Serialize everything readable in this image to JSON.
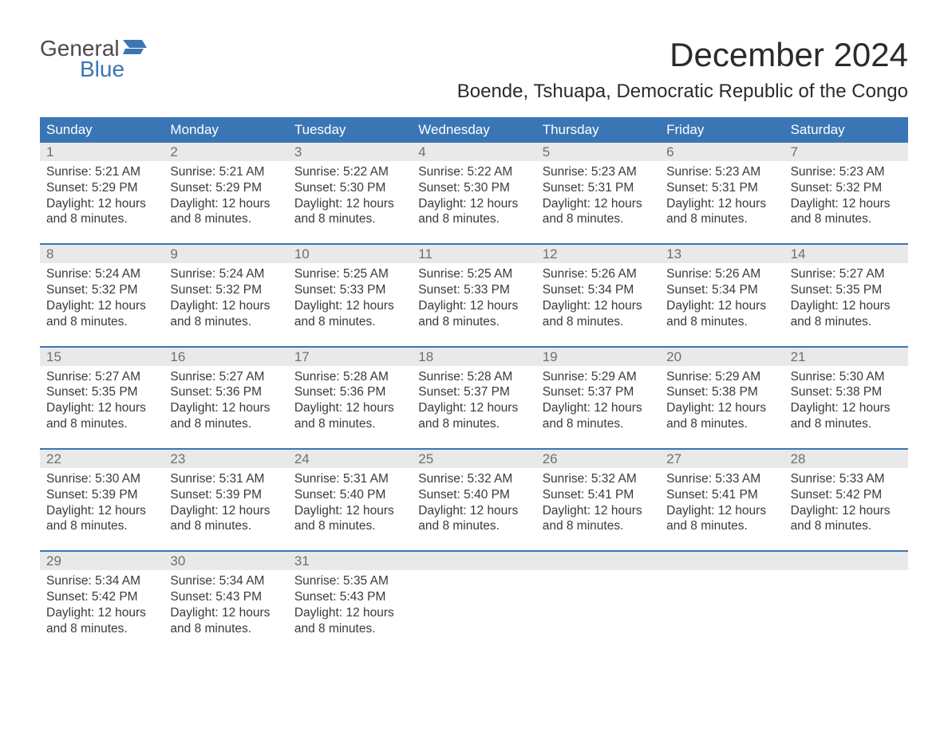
{
  "logo": {
    "text_general": "General",
    "text_blue": "Blue",
    "flag_color": "#3a76b5"
  },
  "title": "December 2024",
  "location": "Boende, Tshuapa, Democratic Republic of the Congo",
  "colors": {
    "header_bg": "#3a76b5",
    "header_text": "#ffffff",
    "daynum_bg": "#e9e9e9",
    "daynum_text": "#6f6f6f",
    "body_text": "#3a3a3a",
    "week_border": "#3a76b5",
    "page_bg": "#ffffff"
  },
  "day_names": [
    "Sunday",
    "Monday",
    "Tuesday",
    "Wednesday",
    "Thursday",
    "Friday",
    "Saturday"
  ],
  "labels": {
    "sunrise": "Sunrise:",
    "sunset": "Sunset:",
    "daylight": "Daylight:"
  },
  "weeks": [
    [
      {
        "d": "1",
        "sunrise": "5:21 AM",
        "sunset": "5:29 PM",
        "daylight": "12 hours and 8 minutes."
      },
      {
        "d": "2",
        "sunrise": "5:21 AM",
        "sunset": "5:29 PM",
        "daylight": "12 hours and 8 minutes."
      },
      {
        "d": "3",
        "sunrise": "5:22 AM",
        "sunset": "5:30 PM",
        "daylight": "12 hours and 8 minutes."
      },
      {
        "d": "4",
        "sunrise": "5:22 AM",
        "sunset": "5:30 PM",
        "daylight": "12 hours and 8 minutes."
      },
      {
        "d": "5",
        "sunrise": "5:23 AM",
        "sunset": "5:31 PM",
        "daylight": "12 hours and 8 minutes."
      },
      {
        "d": "6",
        "sunrise": "5:23 AM",
        "sunset": "5:31 PM",
        "daylight": "12 hours and 8 minutes."
      },
      {
        "d": "7",
        "sunrise": "5:23 AM",
        "sunset": "5:32 PM",
        "daylight": "12 hours and 8 minutes."
      }
    ],
    [
      {
        "d": "8",
        "sunrise": "5:24 AM",
        "sunset": "5:32 PM",
        "daylight": "12 hours and 8 minutes."
      },
      {
        "d": "9",
        "sunrise": "5:24 AM",
        "sunset": "5:32 PM",
        "daylight": "12 hours and 8 minutes."
      },
      {
        "d": "10",
        "sunrise": "5:25 AM",
        "sunset": "5:33 PM",
        "daylight": "12 hours and 8 minutes."
      },
      {
        "d": "11",
        "sunrise": "5:25 AM",
        "sunset": "5:33 PM",
        "daylight": "12 hours and 8 minutes."
      },
      {
        "d": "12",
        "sunrise": "5:26 AM",
        "sunset": "5:34 PM",
        "daylight": "12 hours and 8 minutes."
      },
      {
        "d": "13",
        "sunrise": "5:26 AM",
        "sunset": "5:34 PM",
        "daylight": "12 hours and 8 minutes."
      },
      {
        "d": "14",
        "sunrise": "5:27 AM",
        "sunset": "5:35 PM",
        "daylight": "12 hours and 8 minutes."
      }
    ],
    [
      {
        "d": "15",
        "sunrise": "5:27 AM",
        "sunset": "5:35 PM",
        "daylight": "12 hours and 8 minutes."
      },
      {
        "d": "16",
        "sunrise": "5:27 AM",
        "sunset": "5:36 PM",
        "daylight": "12 hours and 8 minutes."
      },
      {
        "d": "17",
        "sunrise": "5:28 AM",
        "sunset": "5:36 PM",
        "daylight": "12 hours and 8 minutes."
      },
      {
        "d": "18",
        "sunrise": "5:28 AM",
        "sunset": "5:37 PM",
        "daylight": "12 hours and 8 minutes."
      },
      {
        "d": "19",
        "sunrise": "5:29 AM",
        "sunset": "5:37 PM",
        "daylight": "12 hours and 8 minutes."
      },
      {
        "d": "20",
        "sunrise": "5:29 AM",
        "sunset": "5:38 PM",
        "daylight": "12 hours and 8 minutes."
      },
      {
        "d": "21",
        "sunrise": "5:30 AM",
        "sunset": "5:38 PM",
        "daylight": "12 hours and 8 minutes."
      }
    ],
    [
      {
        "d": "22",
        "sunrise": "5:30 AM",
        "sunset": "5:39 PM",
        "daylight": "12 hours and 8 minutes."
      },
      {
        "d": "23",
        "sunrise": "5:31 AM",
        "sunset": "5:39 PM",
        "daylight": "12 hours and 8 minutes."
      },
      {
        "d": "24",
        "sunrise": "5:31 AM",
        "sunset": "5:40 PM",
        "daylight": "12 hours and 8 minutes."
      },
      {
        "d": "25",
        "sunrise": "5:32 AM",
        "sunset": "5:40 PM",
        "daylight": "12 hours and 8 minutes."
      },
      {
        "d": "26",
        "sunrise": "5:32 AM",
        "sunset": "5:41 PM",
        "daylight": "12 hours and 8 minutes."
      },
      {
        "d": "27",
        "sunrise": "5:33 AM",
        "sunset": "5:41 PM",
        "daylight": "12 hours and 8 minutes."
      },
      {
        "d": "28",
        "sunrise": "5:33 AM",
        "sunset": "5:42 PM",
        "daylight": "12 hours and 8 minutes."
      }
    ],
    [
      {
        "d": "29",
        "sunrise": "5:34 AM",
        "sunset": "5:42 PM",
        "daylight": "12 hours and 8 minutes."
      },
      {
        "d": "30",
        "sunrise": "5:34 AM",
        "sunset": "5:43 PM",
        "daylight": "12 hours and 8 minutes."
      },
      {
        "d": "31",
        "sunrise": "5:35 AM",
        "sunset": "5:43 PM",
        "daylight": "12 hours and 8 minutes."
      },
      null,
      null,
      null,
      null
    ]
  ]
}
